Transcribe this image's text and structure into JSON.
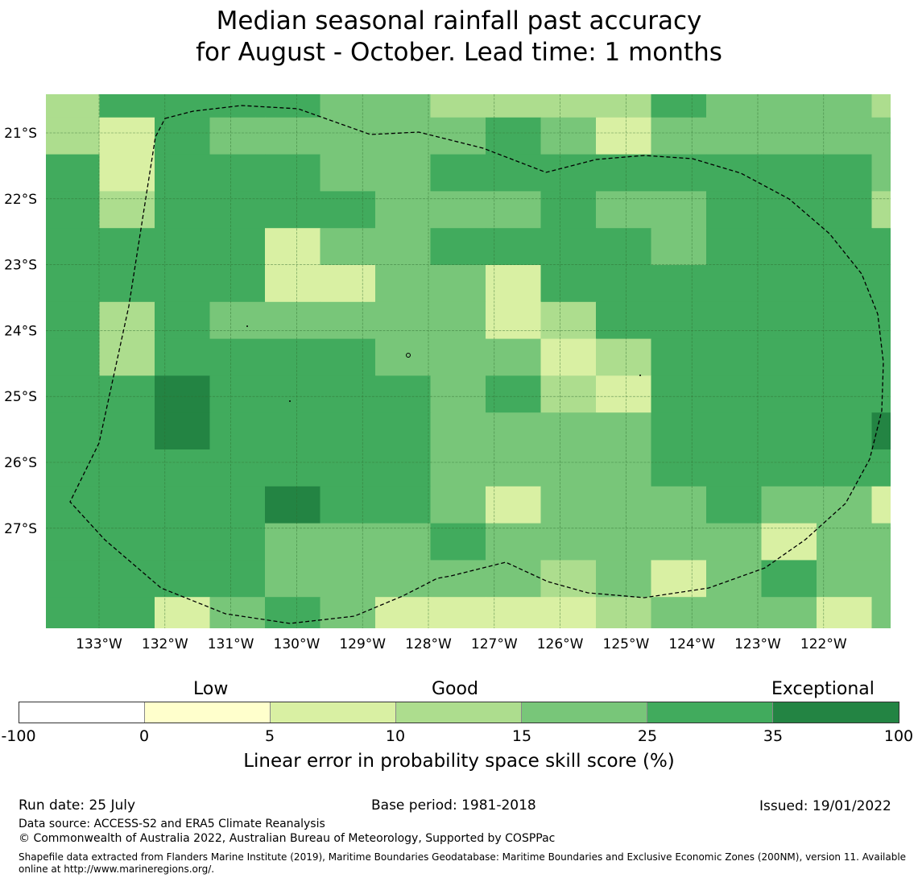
{
  "title": {
    "line1": "Median seasonal rainfall past accuracy",
    "line2": "for August - October. Lead time: 1 months"
  },
  "map": {
    "lon_labels": [
      "133°W",
      "132°W",
      "131°W",
      "130°W",
      "129°W",
      "128°W",
      "127°W",
      "126°W",
      "125°W",
      "124°W",
      "123°W",
      "122°W"
    ],
    "lat_labels": [
      "21°S",
      "22°S",
      "23°S",
      "24°S",
      "25°S",
      "26°S",
      "27°S"
    ],
    "grid_note_levels": [
      0,
      1,
      2,
      3,
      4,
      5
    ],
    "cells": [
      [
        2,
        4,
        4,
        4,
        4,
        3,
        3,
        2,
        2,
        2,
        2,
        4,
        3,
        3,
        3,
        2,
        1
      ],
      [
        2,
        1,
        4,
        3,
        3,
        3,
        3,
        3,
        4,
        3,
        1,
        3,
        3,
        3,
        3,
        3,
        1
      ],
      [
        4,
        1,
        4,
        4,
        4,
        3,
        3,
        4,
        4,
        4,
        4,
        4,
        4,
        4,
        4,
        3,
        4
      ],
      [
        4,
        2,
        4,
        4,
        4,
        4,
        3,
        3,
        3,
        4,
        3,
        3,
        4,
        4,
        4,
        2,
        3
      ],
      [
        4,
        4,
        4,
        4,
        1,
        3,
        3,
        4,
        4,
        4,
        4,
        3,
        4,
        4,
        4,
        4,
        4
      ],
      [
        4,
        4,
        4,
        4,
        1,
        1,
        3,
        3,
        1,
        4,
        4,
        4,
        4,
        4,
        4,
        4,
        4
      ],
      [
        4,
        2,
        4,
        3,
        3,
        3,
        3,
        3,
        1,
        2,
        4,
        4,
        4,
        4,
        4,
        4,
        4
      ],
      [
        4,
        2,
        4,
        4,
        4,
        4,
        3,
        3,
        3,
        1,
        2,
        4,
        4,
        4,
        4,
        4,
        2
      ],
      [
        4,
        4,
        5,
        4,
        4,
        4,
        4,
        3,
        4,
        2,
        1,
        4,
        4,
        4,
        4,
        4,
        4
      ],
      [
        4,
        4,
        5,
        4,
        4,
        4,
        4,
        3,
        3,
        3,
        3,
        4,
        4,
        4,
        4,
        5,
        5
      ],
      [
        4,
        4,
        4,
        4,
        4,
        4,
        4,
        3,
        3,
        3,
        3,
        4,
        4,
        4,
        4,
        4,
        4
      ],
      [
        4,
        4,
        4,
        4,
        5,
        4,
        4,
        3,
        1,
        3,
        3,
        3,
        4,
        3,
        3,
        1,
        4
      ],
      [
        4,
        4,
        4,
        4,
        3,
        3,
        3,
        4,
        3,
        3,
        3,
        3,
        3,
        1,
        3,
        3,
        4
      ],
      [
        4,
        4,
        4,
        4,
        3,
        3,
        3,
        3,
        3,
        2,
        3,
        1,
        3,
        4,
        3,
        3,
        3
      ],
      [
        4,
        4,
        1,
        3,
        4,
        3,
        1,
        1,
        1,
        1,
        2,
        3,
        3,
        3,
        1,
        3,
        4
      ],
      [
        3,
        4,
        2,
        1,
        3,
        3,
        3,
        3,
        3,
        3,
        3,
        3,
        3,
        3,
        3,
        0,
        1
      ]
    ]
  },
  "colorbar": {
    "categories": [
      "Low",
      "Good",
      "Exceptional"
    ],
    "ticks": [
      "-100",
      "0",
      "5",
      "10",
      "15",
      "25",
      "35",
      "100"
    ],
    "colors": [
      "#ffffff",
      "#ffffcc",
      "#d9f0a3",
      "#addd8e",
      "#78c679",
      "#41ab5d",
      "#238443"
    ],
    "label": "Linear error in probability space skill score (%)"
  },
  "footer": {
    "run_date": "Run date: 25 July",
    "base_period": "Base period: 1981-2018",
    "issued": "Issued: 19/01/2022",
    "data_source": "Data source: ACCESS-S2 and ERA5 Climate Reanalysis",
    "copyright": "© Commonwealth of Australia 2022, Australian Bureau of Meteorology, Supported by COSPPac",
    "shapefile": "Shapefile data extracted from Flanders Marine Institute (2019), Maritime Boundaries Geodatabase: Maritime Boundaries and Exclusive Economic Zones (200NM), version 11. Available online at http://www.marineregions.org/."
  }
}
